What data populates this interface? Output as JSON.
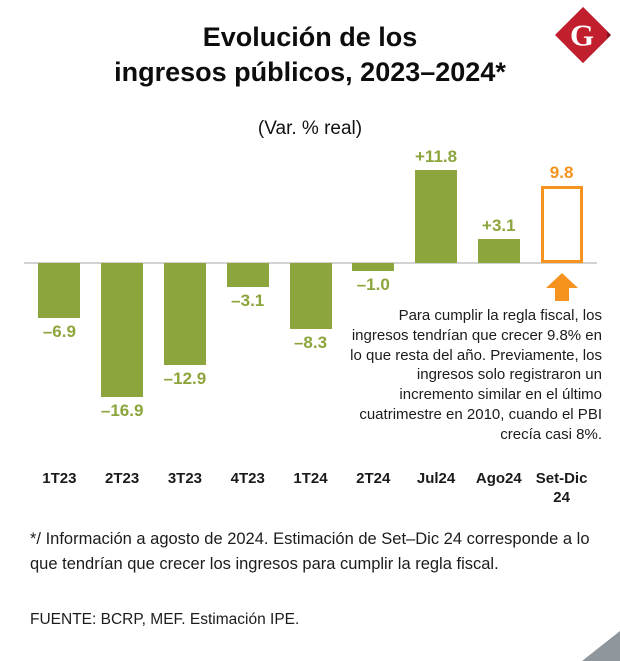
{
  "chart_data": {
    "type": "bar",
    "title": "Evolución de los ingresos públicos, 2023–2024*",
    "title_lines": [
      "Evolución de los",
      "ingresos públicos, 2023–2024*"
    ],
    "subtitle": "(Var. % real)",
    "categories": [
      "1T23",
      "2T23",
      "3T23",
      "4T23",
      "1T24",
      "2T24",
      "Jul24",
      "Ago24",
      "Set-Dic 24"
    ],
    "values": [
      -6.9,
      -16.9,
      -12.9,
      -3.1,
      -8.3,
      -1.0,
      11.8,
      3.1,
      9.8
    ],
    "value_labels": [
      "–6.9",
      "–16.9",
      "–12.9",
      "–3.1",
      "–8.3",
      "–1.0",
      "+11.8",
      "+3.1",
      "9.8"
    ],
    "estimate_index": 8,
    "bar_color": "#8CA53C",
    "estimate_color": "#F6921E",
    "axis_line_color": "#d2d2d2",
    "ylim": [
      -18,
      13
    ],
    "grid": false,
    "legend": "none"
  },
  "annotation": {
    "text": "Para cumplir la regla fiscal, los ingresos tendrían que crecer 9.8% en lo que resta del año. Previamente, los ingresos solo registraron un incremento similar en el último cuatrimestre en 2010, cuando el PBI crecía casi 8%."
  },
  "footnote": "*/ Información a agosto de 2024. Estimación de Set–Dic 24 corresponde a lo que tendrían que crecer los ingresos para cumplir la regla fiscal.",
  "source": "FUENTE: BCRP, MEF. Estimación IPE.",
  "logo": {
    "letter": "G",
    "color": "#C21F2E",
    "shadow": "#7E1220"
  }
}
